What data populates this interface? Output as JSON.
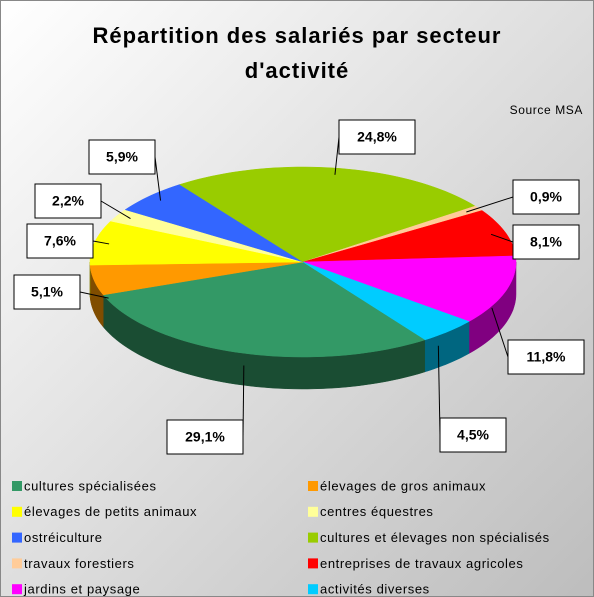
{
  "chart_data": {
    "type": "pie",
    "title": "Répartition des salariés par secteur d'activité",
    "subtitle": "Source MSA",
    "categories": [
      "cultures spécialisées",
      "élevages de gros animaux",
      "élevages de petits animaux",
      "centres équestres",
      "ostréiculture",
      "cultures et élevages non spécialisés",
      "travaux forestiers",
      "entreprises de travaux agricoles",
      "jardins et paysage",
      "activités diverses"
    ],
    "values": [
      29.1,
      5.1,
      7.6,
      2.2,
      5.9,
      24.8,
      0.9,
      8.1,
      11.8,
      4.5
    ],
    "value_labels": [
      "29,1%",
      "5,1%",
      "7,6%",
      "2,2%",
      "5,9%",
      "24,8%",
      "0,9%",
      "8,1%",
      "11,8%",
      "4,5%"
    ],
    "colors": [
      "#339966",
      "#ff9900",
      "#ffff00",
      "#ffff99",
      "#3366ff",
      "#99cc00",
      "#ffcc99",
      "#ff0000",
      "#ff00ff",
      "#00ccff"
    ],
    "legend": "bottom"
  }
}
